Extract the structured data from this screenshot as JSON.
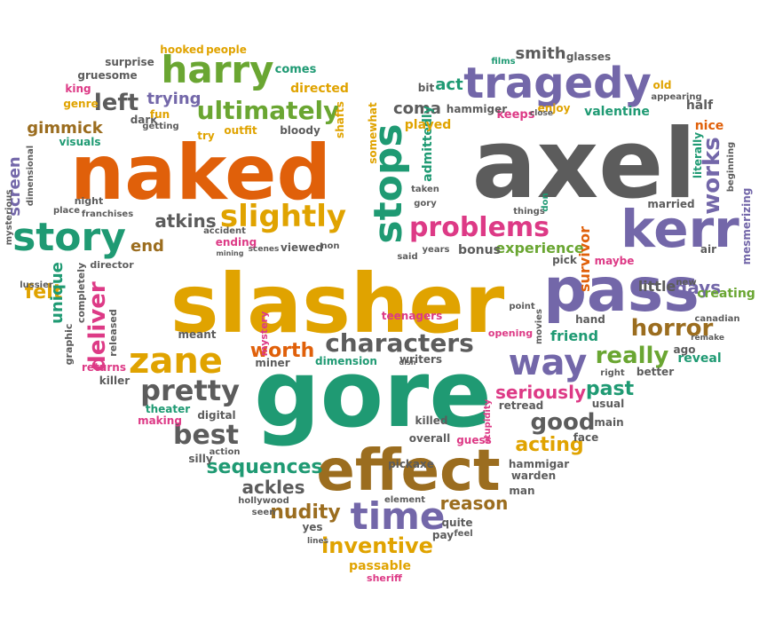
{
  "colors": {
    "orange": "#e0600a",
    "gold": "#e0a300",
    "teal": "#1f9a73",
    "purple": "#7367a9",
    "gray": "#5c5c5c",
    "green": "#6aa632",
    "brown": "#9b6d1f",
    "pink": "#dd3a86"
  },
  "words": [
    {
      "text": "slasher",
      "color": "gold"
    },
    {
      "text": "naked",
      "color": "orange"
    },
    {
      "text": "axel",
      "color": "gray"
    },
    {
      "text": "gore",
      "color": "teal"
    },
    {
      "text": "effect",
      "color": "brown"
    },
    {
      "text": "kerr",
      "color": "purple"
    },
    {
      "text": "pass",
      "color": "purple"
    },
    {
      "text": "tragedy",
      "color": "purple"
    },
    {
      "text": "harry",
      "color": "green"
    },
    {
      "text": "story",
      "color": "teal"
    },
    {
      "text": "stops",
      "color": "teal"
    },
    {
      "text": "slightly",
      "color": "gold"
    },
    {
      "text": "problems",
      "color": "pink"
    },
    {
      "text": "zane",
      "color": "gold"
    },
    {
      "text": "time",
      "color": "purple"
    },
    {
      "text": "way",
      "color": "purple"
    },
    {
      "text": "pretty",
      "color": "gray"
    },
    {
      "text": "characters",
      "color": "gray"
    },
    {
      "text": "ultimately",
      "color": "green"
    },
    {
      "text": "left",
      "color": "gray"
    },
    {
      "text": "really",
      "color": "green"
    },
    {
      "text": "horror",
      "color": "brown"
    },
    {
      "text": "best",
      "color": "gray"
    },
    {
      "text": "good",
      "color": "gray"
    },
    {
      "text": "works",
      "color": "purple"
    },
    {
      "text": "inventive",
      "color": "gold"
    },
    {
      "text": "sequences",
      "color": "teal"
    },
    {
      "text": "deliver",
      "color": "pink"
    },
    {
      "text": "felt",
      "color": "gold"
    },
    {
      "text": "gimmick",
      "color": "brown"
    },
    {
      "text": "seriously",
      "color": "pink"
    },
    {
      "text": "worth",
      "color": "orange"
    },
    {
      "text": "nudity",
      "color": "brown"
    },
    {
      "text": "ackles",
      "color": "gray"
    },
    {
      "text": "acting",
      "color": "gold"
    },
    {
      "text": "past",
      "color": "teal"
    },
    {
      "text": "days",
      "color": "purple"
    },
    {
      "text": "reason",
      "color": "brown"
    },
    {
      "text": "atkins",
      "color": "gray"
    },
    {
      "text": "end",
      "color": "brown"
    },
    {
      "text": "experience",
      "color": "green"
    },
    {
      "text": "coma",
      "color": "gray"
    },
    {
      "text": "smith",
      "color": "gray"
    },
    {
      "text": "act",
      "color": "teal"
    },
    {
      "text": "trying",
      "color": "purple"
    },
    {
      "text": "screen",
      "color": "purple"
    },
    {
      "text": "unique",
      "color": "teal"
    },
    {
      "text": "bonus",
      "color": "gray"
    },
    {
      "text": "friend",
      "color": "teal"
    },
    {
      "text": "passable",
      "color": "gold"
    },
    {
      "text": "survivor",
      "color": "orange"
    },
    {
      "text": "little",
      "color": "gray"
    },
    {
      "text": "reveal",
      "color": "teal"
    },
    {
      "text": "creating",
      "color": "green"
    },
    {
      "text": "nice",
      "color": "orange"
    },
    {
      "text": "half",
      "color": "gray"
    },
    {
      "text": "admittedly",
      "color": "teal"
    },
    {
      "text": "valentine",
      "color": "teal"
    },
    {
      "text": "keeps",
      "color": "pink"
    },
    {
      "text": "enjoy",
      "color": "gold"
    },
    {
      "text": "hammiger",
      "color": "gray"
    },
    {
      "text": "played",
      "color": "gold"
    },
    {
      "text": "directed",
      "color": "gold"
    },
    {
      "text": "comes",
      "color": "teal"
    },
    {
      "text": "hooked",
      "color": "gold"
    },
    {
      "text": "people",
      "color": "gold"
    },
    {
      "text": "surprise",
      "color": "gray"
    },
    {
      "text": "gruesome",
      "color": "gray"
    },
    {
      "text": "king",
      "color": "pink"
    },
    {
      "text": "genre",
      "color": "gold"
    },
    {
      "text": "dark",
      "color": "gray"
    },
    {
      "text": "fun",
      "color": "gold"
    },
    {
      "text": "getting",
      "color": "gray"
    },
    {
      "text": "visuals",
      "color": "teal"
    },
    {
      "text": "try",
      "color": "gold"
    },
    {
      "text": "outfit",
      "color": "gold"
    },
    {
      "text": "bloody",
      "color": "gray"
    },
    {
      "text": "shafts",
      "color": "gold"
    },
    {
      "text": "somewhat",
      "color": "gold"
    },
    {
      "text": "films",
      "color": "teal"
    },
    {
      "text": "glasses",
      "color": "gray"
    },
    {
      "text": "bit",
      "color": "gray"
    },
    {
      "text": "old",
      "color": "gold"
    },
    {
      "text": "appearing",
      "color": "gray"
    },
    {
      "text": "close",
      "color": "gray"
    },
    {
      "text": "literally",
      "color": "teal"
    },
    {
      "text": "beginning",
      "color": "gray"
    },
    {
      "text": "mesmerizing",
      "color": "purple"
    },
    {
      "text": "married",
      "color": "gray"
    },
    {
      "text": "air",
      "color": "gray"
    },
    {
      "text": "maybe",
      "color": "pink"
    },
    {
      "text": "new",
      "color": "gray"
    },
    {
      "text": "canadian",
      "color": "gray"
    },
    {
      "text": "remake",
      "color": "gray"
    },
    {
      "text": "right",
      "color": "gray"
    },
    {
      "text": "ago",
      "color": "gray"
    },
    {
      "text": "better",
      "color": "gray"
    },
    {
      "text": "hand",
      "color": "gray"
    },
    {
      "text": "usual",
      "color": "gray"
    },
    {
      "text": "main",
      "color": "gray"
    },
    {
      "text": "face",
      "color": "gray"
    },
    {
      "text": "pick",
      "color": "gray"
    },
    {
      "text": "things",
      "color": "gray"
    },
    {
      "text": "don",
      "color": "teal"
    },
    {
      "text": "gory",
      "color": "gray"
    },
    {
      "text": "taken",
      "color": "gray"
    },
    {
      "text": "said",
      "color": "gray"
    },
    {
      "text": "years",
      "color": "gray"
    },
    {
      "text": "point",
      "color": "gray"
    },
    {
      "text": "movies",
      "color": "gray"
    },
    {
      "text": "opening",
      "color": "pink"
    },
    {
      "text": "teenagers",
      "color": "pink"
    },
    {
      "text": "writers",
      "color": "gray"
    },
    {
      "text": "dimension",
      "color": "teal"
    },
    {
      "text": "killed",
      "color": "gray"
    },
    {
      "text": "guess",
      "color": "pink"
    },
    {
      "text": "overall",
      "color": "gray"
    },
    {
      "text": "stupidity",
      "color": "pink"
    },
    {
      "text": "retread",
      "color": "gray"
    },
    {
      "text": "hammigar",
      "color": "gray"
    },
    {
      "text": "warden",
      "color": "gray"
    },
    {
      "text": "man",
      "color": "gray"
    },
    {
      "text": "element",
      "color": "gray"
    },
    {
      "text": "quite",
      "color": "gray"
    },
    {
      "text": "pay",
      "color": "gray"
    },
    {
      "text": "feel",
      "color": "gray"
    },
    {
      "text": "yes",
      "color": "gray"
    },
    {
      "text": "lines",
      "color": "gray"
    },
    {
      "text": "sheriff",
      "color": "pink"
    },
    {
      "text": "hollywood",
      "color": "gray"
    },
    {
      "text": "seen",
      "color": "gray"
    },
    {
      "text": "silly",
      "color": "gray"
    },
    {
      "text": "action",
      "color": "gray"
    },
    {
      "text": "pickaxe",
      "color": "gray"
    },
    {
      "text": "digital",
      "color": "gray"
    },
    {
      "text": "theater",
      "color": "teal"
    },
    {
      "text": "making",
      "color": "pink"
    },
    {
      "text": "killer",
      "color": "gray"
    },
    {
      "text": "returns",
      "color": "pink"
    },
    {
      "text": "meant",
      "color": "gray"
    },
    {
      "text": "miner",
      "color": "gray"
    },
    {
      "text": "mystery",
      "color": "pink"
    },
    {
      "text": "graphic",
      "color": "gray"
    },
    {
      "text": "released",
      "color": "gray"
    },
    {
      "text": "completely",
      "color": "gray"
    },
    {
      "text": "director",
      "color": "gray"
    },
    {
      "text": "lussier",
      "color": "gray"
    },
    {
      "text": "mysterious",
      "color": "gray"
    },
    {
      "text": "dimensional",
      "color": "gray"
    },
    {
      "text": "night",
      "color": "gray"
    },
    {
      "text": "place",
      "color": "gray"
    },
    {
      "text": "franchises",
      "color": "gray"
    },
    {
      "text": "accident",
      "color": "gray"
    },
    {
      "text": "ending",
      "color": "pink"
    },
    {
      "text": "viewed",
      "color": "gray"
    },
    {
      "text": "non",
      "color": "gray"
    },
    {
      "text": "scenes",
      "color": "gray"
    },
    {
      "text": "mining",
      "color": "gray"
    },
    {
      "text": "dish",
      "color": "gray"
    }
  ]
}
